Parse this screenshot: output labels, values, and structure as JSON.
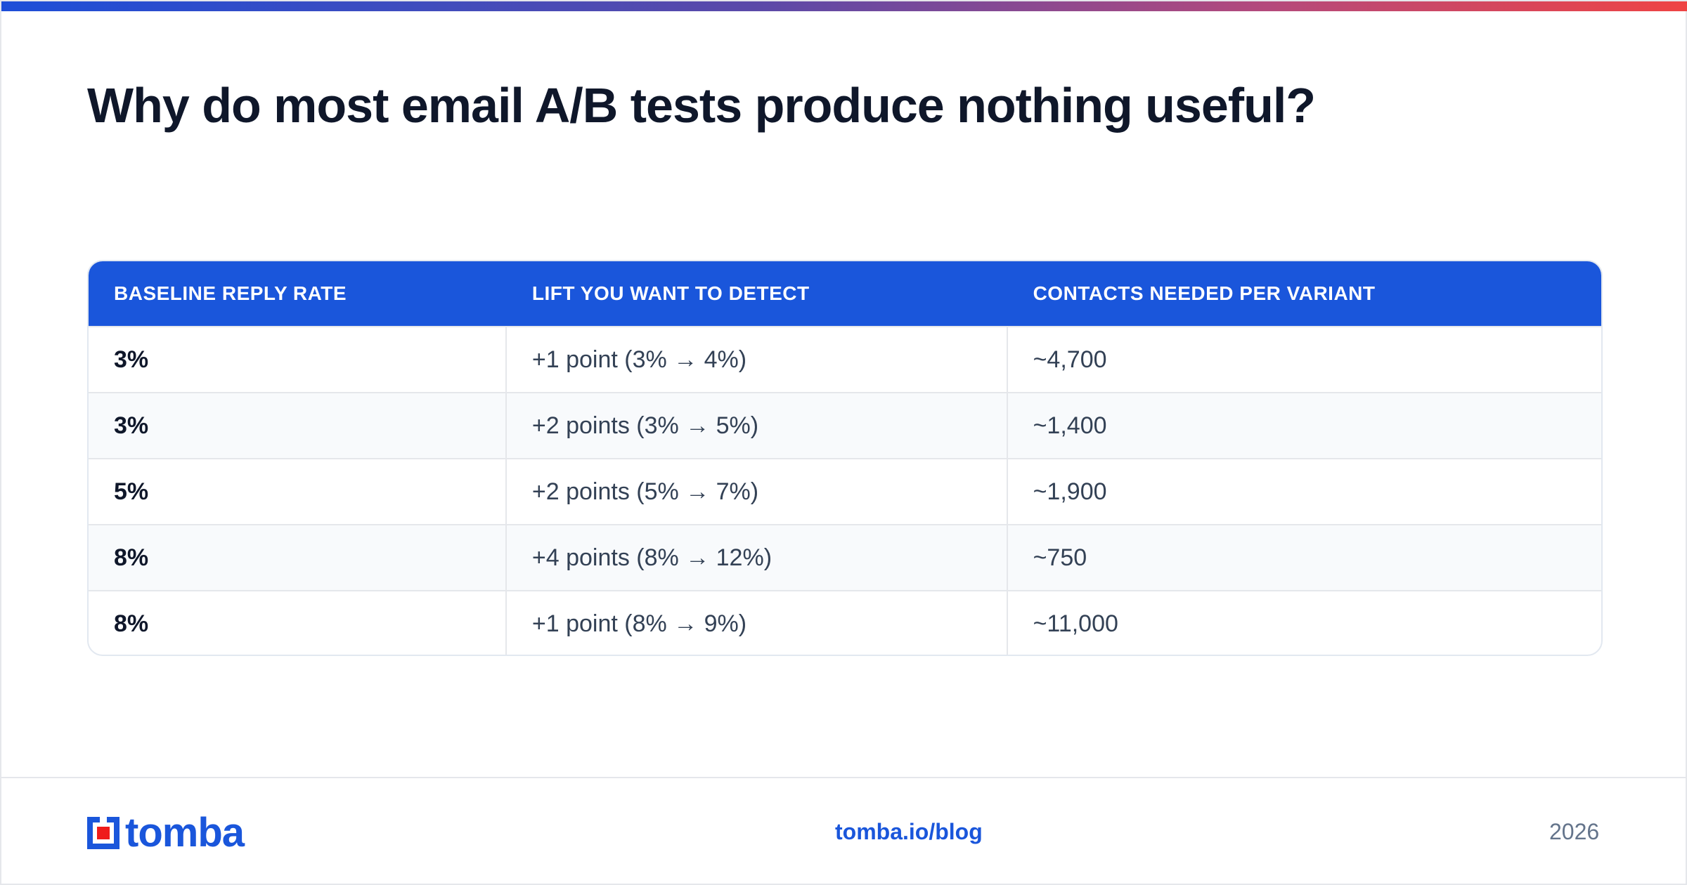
{
  "title": "Why do most email A/B tests produce nothing useful?",
  "table": {
    "headers": [
      "BASELINE REPLY RATE",
      "LIFT YOU WANT TO DETECT",
      "CONTACTS NEEDED PER VARIANT"
    ],
    "rows": [
      [
        "3%",
        "+1 point (3% → 4%)",
        "~4,700"
      ],
      [
        "3%",
        "+2 points (3% → 5%)",
        "~1,400"
      ],
      [
        "5%",
        "+2 points (5% → 7%)",
        "~1,900"
      ],
      [
        "8%",
        "+4 points (8% → 12%)",
        "~750"
      ],
      [
        "8%",
        "+1 point (8% → 9%)",
        "~11,000"
      ]
    ]
  },
  "footer": {
    "logo_text": "tomba",
    "link": "tomba.io/blog",
    "year": "2026"
  },
  "colors": {
    "accent": "#1a56db",
    "logo_red": "#ef1c1c",
    "gradient": [
      "#1d4ed8",
      "#ef4444"
    ]
  }
}
